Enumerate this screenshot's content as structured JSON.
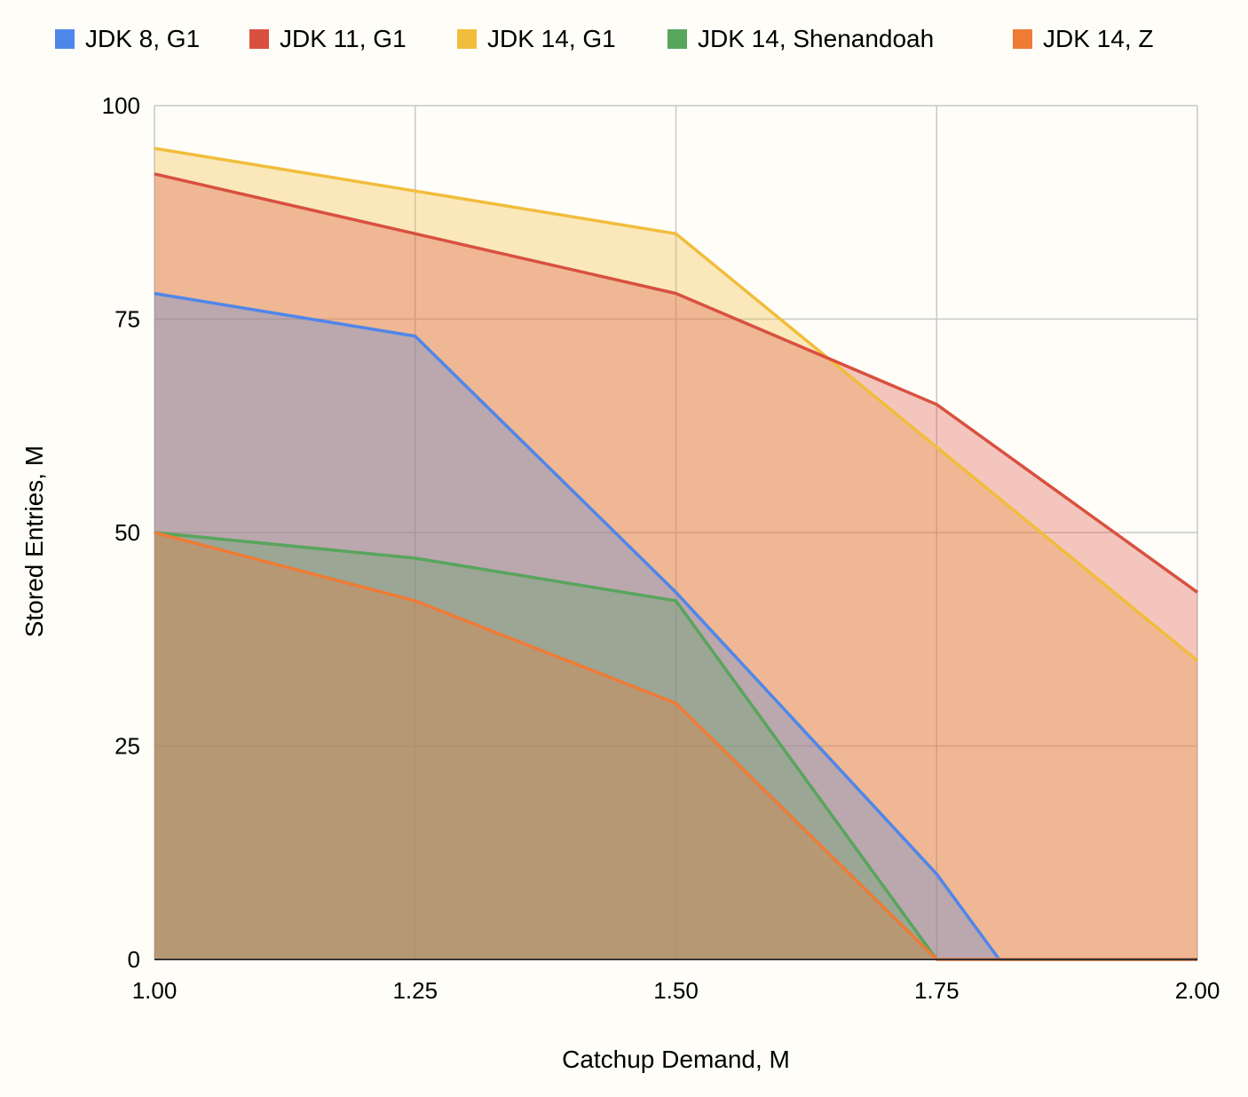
{
  "chart_data": {
    "type": "area",
    "x": [
      1.0,
      1.25,
      1.5,
      1.75,
      2.0
    ],
    "x_tick_labels": [
      "1.00",
      "1.25",
      "1.50",
      "1.75",
      "2.00"
    ],
    "y_ticks": [
      0,
      25,
      50,
      75,
      100
    ],
    "y_tick_labels": [
      "0",
      "25",
      "50",
      "75",
      "100"
    ],
    "xlim": [
      1.0,
      2.0
    ],
    "ylim": [
      0,
      100
    ],
    "xlabel": "Catchup Demand, M",
    "ylabel": "Stored Entries, M",
    "grid": true,
    "legend_position": "top",
    "series": [
      {
        "name": "JDK 8, G1",
        "color": "#4f86ea",
        "points": [
          [
            1.0,
            78
          ],
          [
            1.25,
            73
          ],
          [
            1.5,
            43
          ],
          [
            1.75,
            10
          ],
          [
            1.81,
            0
          ],
          [
            2.0,
            0
          ]
        ]
      },
      {
        "name": "JDK 11, G1",
        "color": "#d9503f",
        "points": [
          [
            1.0,
            92
          ],
          [
            1.25,
            85
          ],
          [
            1.5,
            78
          ],
          [
            1.75,
            65
          ],
          [
            2.0,
            43
          ]
        ]
      },
      {
        "name": "JDK 14, G1",
        "color": "#f1bd3b",
        "points": [
          [
            1.0,
            95
          ],
          [
            1.25,
            90
          ],
          [
            1.5,
            85
          ],
          [
            1.75,
            60
          ],
          [
            2.0,
            35
          ]
        ]
      },
      {
        "name": "JDK 14, Shenandoah",
        "color": "#58a55c",
        "points": [
          [
            1.0,
            50
          ],
          [
            1.25,
            47
          ],
          [
            1.5,
            42
          ],
          [
            1.75,
            0
          ]
        ]
      },
      {
        "name": "JDK 14, Z",
        "color": "#ef7b35",
        "points": [
          [
            1.0,
            50
          ],
          [
            1.25,
            42
          ],
          [
            1.5,
            30
          ],
          [
            1.75,
            0
          ],
          [
            2.0,
            0
          ]
        ]
      }
    ]
  }
}
